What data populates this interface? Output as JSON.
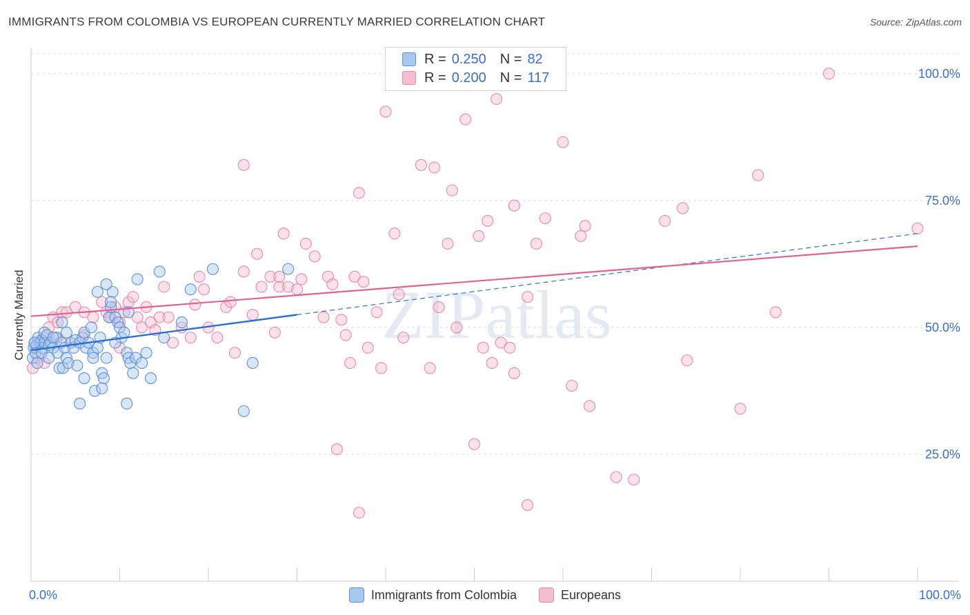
{
  "title": "IMMIGRANTS FROM COLOMBIA VS EUROPEAN CURRENTLY MARRIED CORRELATION CHART",
  "source": "Source: ZipAtlas.com",
  "watermark": "ZIPatlas",
  "legend_top": [
    {
      "r_label": "R =",
      "r_value": "0.250",
      "n_label": "N =",
      "n_value": "82"
    },
    {
      "r_label": "R =",
      "r_value": "0.200",
      "n_label": "N =",
      "n_value": "117"
    }
  ],
  "legend_bottom": [
    "Immigrants from Colombia",
    "Europeans"
  ],
  "colors": {
    "blue_fill": "#aac8ef",
    "blue_stroke": "#5b8fd6",
    "blue_line": "#2d6fd1",
    "pink_fill": "#f6bcd0",
    "pink_stroke": "#e589aa",
    "pink_line": "#e0638f",
    "axis_text": "#3b6fc7",
    "grid": "#dddddd"
  },
  "chart_data": {
    "type": "scatter",
    "title": "IMMIGRANTS FROM COLOMBIA VS EUROPEAN CURRENTLY MARRIED CORRELATION CHART",
    "xlabel": "",
    "ylabel": "Currently Married",
    "xlim": [
      0,
      100
    ],
    "ylim": [
      0,
      105
    ],
    "x_tick_labels": [
      "0.0%",
      "100.0%"
    ],
    "y_ticks": [
      25,
      50,
      75,
      100
    ],
    "y_tick_labels": [
      "25.0%",
      "50.0%",
      "75.0%",
      "100.0%"
    ],
    "series": [
      {
        "name": "Immigrants from Colombia",
        "R": 0.25,
        "N": 82,
        "trend": {
          "x0": 0,
          "y0": 45.5,
          "x1": 30,
          "y1": 52.5,
          "dashed_to_x": 100,
          "dashed_to_y": 68.5
        },
        "points": [
          [
            0.2,
            44
          ],
          [
            0.3,
            46
          ],
          [
            0.4,
            47
          ],
          [
            0.5,
            45
          ],
          [
            0.6,
            46.5
          ],
          [
            0.8,
            48
          ],
          [
            1,
            47
          ],
          [
            1.2,
            47.5
          ],
          [
            1.3,
            46
          ],
          [
            1.5,
            47
          ],
          [
            1.5,
            49
          ],
          [
            1.8,
            48.5
          ],
          [
            2,
            46.5
          ],
          [
            2.2,
            47
          ],
          [
            2.5,
            46
          ],
          [
            2.8,
            48
          ],
          [
            3,
            45
          ],
          [
            3.2,
            42
          ],
          [
            3.4,
            47
          ],
          [
            3.6,
            42
          ],
          [
            3.8,
            46
          ],
          [
            4,
            44
          ],
          [
            4.2,
            43
          ],
          [
            4.5,
            47
          ],
          [
            4.8,
            46
          ],
          [
            5,
            47.5
          ],
          [
            5.2,
            42.5
          ],
          [
            5.5,
            47
          ],
          [
            5.8,
            48
          ],
          [
            6,
            49
          ],
          [
            6.2,
            46
          ],
          [
            6.5,
            47
          ],
          [
            6.8,
            50
          ],
          [
            7,
            45
          ],
          [
            7.2,
            37.5
          ],
          [
            7.5,
            46
          ],
          [
            7.8,
            48
          ],
          [
            8,
            41
          ],
          [
            8.2,
            40
          ],
          [
            8.5,
            44
          ],
          [
            8.8,
            52
          ],
          [
            9,
            54
          ],
          [
            9.2,
            57
          ],
          [
            9.5,
            52
          ],
          [
            9.8,
            51
          ],
          [
            10,
            50
          ],
          [
            10.2,
            48
          ],
          [
            10.5,
            49
          ],
          [
            10.8,
            45
          ],
          [
            11,
            44
          ],
          [
            11.2,
            43
          ],
          [
            11.5,
            41
          ],
          [
            11.8,
            44
          ],
          [
            12,
            59.5
          ],
          [
            12.5,
            43
          ],
          [
            13,
            45
          ],
          [
            13.5,
            40
          ],
          [
            5.5,
            35
          ],
          [
            8,
            38
          ],
          [
            10.8,
            35
          ],
          [
            7.5,
            57
          ],
          [
            8.5,
            58.5
          ],
          [
            14.5,
            61
          ],
          [
            18,
            57.5
          ],
          [
            20.5,
            61.5
          ],
          [
            25,
            43
          ],
          [
            24,
            33.5
          ],
          [
            29,
            61.5
          ],
          [
            15,
            48
          ],
          [
            17,
            51
          ],
          [
            11,
            53
          ],
          [
            9,
            55
          ],
          [
            0.4,
            47
          ],
          [
            0.7,
            43
          ],
          [
            1.2,
            45
          ],
          [
            2,
            44
          ],
          [
            2.5,
            48
          ],
          [
            6,
            40
          ],
          [
            7,
            44
          ],
          [
            9.5,
            47
          ],
          [
            4,
            49
          ],
          [
            3.5,
            51
          ]
        ]
      },
      {
        "name": "Europeans",
        "R": 0.2,
        "N": 117,
        "trend": {
          "x0": 0,
          "y0": 52.2,
          "x1": 100,
          "y1": 66
        },
        "points": [
          [
            0.2,
            42
          ],
          [
            0.5,
            46
          ],
          [
            0.8,
            44
          ],
          [
            1,
            47
          ],
          [
            1.5,
            48
          ],
          [
            2,
            50
          ],
          [
            2.5,
            52
          ],
          [
            3,
            51
          ],
          [
            3.5,
            53
          ],
          [
            4,
            53
          ],
          [
            5,
            54
          ],
          [
            6,
            53
          ],
          [
            7,
            52
          ],
          [
            8,
            55
          ],
          [
            8.5,
            53
          ],
          [
            9,
            52
          ],
          [
            9.5,
            54
          ],
          [
            10,
            51
          ],
          [
            10.5,
            53
          ],
          [
            11,
            55
          ],
          [
            11.5,
            56
          ],
          [
            12,
            52
          ],
          [
            12.5,
            50
          ],
          [
            13,
            54
          ],
          [
            13.5,
            51
          ],
          [
            14,
            49.5
          ],
          [
            14.5,
            52
          ],
          [
            15,
            58
          ],
          [
            15.5,
            52
          ],
          [
            16,
            47
          ],
          [
            17,
            50
          ],
          [
            18,
            48
          ],
          [
            19,
            60
          ],
          [
            19.5,
            57.5
          ],
          [
            20,
            50
          ],
          [
            21,
            48
          ],
          [
            22,
            54
          ],
          [
            22.5,
            55
          ],
          [
            23,
            45
          ],
          [
            24,
            61
          ],
          [
            24,
            82
          ],
          [
            25,
            52.5
          ],
          [
            25.5,
            64.5
          ],
          [
            26,
            58
          ],
          [
            27,
            60
          ],
          [
            27.5,
            49
          ],
          [
            28,
            58
          ],
          [
            28.5,
            68.5
          ],
          [
            29,
            58
          ],
          [
            30,
            57.5
          ],
          [
            30.5,
            59.5
          ],
          [
            31,
            66.5
          ],
          [
            32,
            64
          ],
          [
            33,
            52
          ],
          [
            33.5,
            60
          ],
          [
            34,
            58.5
          ],
          [
            34.5,
            26
          ],
          [
            35,
            51.5
          ],
          [
            35.5,
            48.5
          ],
          [
            36,
            43
          ],
          [
            36.5,
            60
          ],
          [
            37,
            76.5
          ],
          [
            37.5,
            59
          ],
          [
            38,
            46
          ],
          [
            39,
            53
          ],
          [
            39.5,
            42
          ],
          [
            40,
            92.5
          ],
          [
            41,
            68.5
          ],
          [
            41.5,
            56.5
          ],
          [
            42,
            48
          ],
          [
            44,
            82
          ],
          [
            45,
            42
          ],
          [
            45.5,
            81.5
          ],
          [
            46,
            54
          ],
          [
            47,
            66.5
          ],
          [
            47.5,
            77
          ],
          [
            48,
            50
          ],
          [
            49,
            91
          ],
          [
            50,
            27
          ],
          [
            50.5,
            68
          ],
          [
            51,
            46
          ],
          [
            51.5,
            71
          ],
          [
            52,
            43
          ],
          [
            52.5,
            95
          ],
          [
            53,
            47
          ],
          [
            54,
            46
          ],
          [
            54.5,
            41
          ],
          [
            54.5,
            74
          ],
          [
            56,
            56
          ],
          [
            57,
            66.5
          ],
          [
            58,
            71.5
          ],
          [
            60,
            86.5
          ],
          [
            61,
            38.5
          ],
          [
            62,
            68
          ],
          [
            62.5,
            70
          ],
          [
            63,
            34.5
          ],
          [
            66,
            20.5
          ],
          [
            68,
            20
          ],
          [
            71.5,
            71
          ],
          [
            73.5,
            73.5
          ],
          [
            74,
            43.5
          ],
          [
            80,
            34
          ],
          [
            82,
            80
          ],
          [
            84,
            53
          ],
          [
            90,
            100
          ],
          [
            100,
            69.5
          ],
          [
            37,
            13.5
          ],
          [
            56,
            15
          ],
          [
            6,
            48.5
          ],
          [
            10,
            46
          ],
          [
            3,
            48
          ],
          [
            1.5,
            43
          ],
          [
            4.5,
            47
          ],
          [
            18.5,
            54.5
          ],
          [
            28,
            60
          ]
        ]
      }
    ]
  }
}
